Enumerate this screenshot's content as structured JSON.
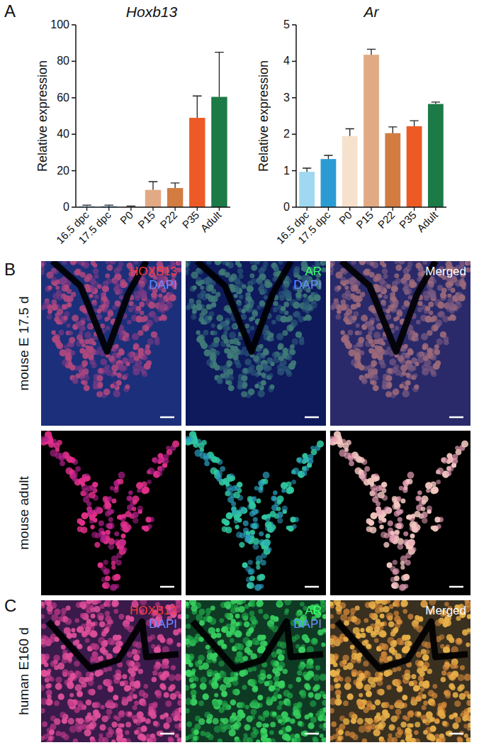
{
  "chart_data": [
    {
      "type": "bar",
      "title": "Hoxb13",
      "y_label": "Relative expression",
      "categories": [
        "16.5 dpc",
        "17.5 dpc",
        "P0",
        "P15",
        "P22",
        "P35",
        "Adult"
      ],
      "values": [
        0.6,
        0.5,
        0.3,
        9.5,
        10.5,
        49,
        60.5
      ],
      "errors": [
        0.5,
        0.6,
        0.3,
        4.5,
        2.8,
        12,
        24.5
      ],
      "colors": [
        "#9fd8f0",
        "#2b9cd3",
        "#f6e2cc",
        "#e2aa84",
        "#d27c42",
        "#ee5a25",
        "#1c7a47"
      ],
      "ylim": [
        0,
        100
      ],
      "yticks": [
        0,
        20,
        40,
        60,
        80,
        100
      ]
    },
    {
      "type": "bar",
      "title": "Ar",
      "y_label": "Relative expression",
      "categories": [
        "16.5 dpc",
        "17.5 dpc",
        "P0",
        "P15",
        "P22",
        "P35",
        "Adult"
      ],
      "values": [
        0.97,
        1.32,
        1.95,
        4.18,
        2.03,
        2.22,
        2.83
      ],
      "errors": [
        0.1,
        0.1,
        0.2,
        0.15,
        0.17,
        0.15,
        0.05
      ],
      "colors": [
        "#9fd8f0",
        "#2b9cd3",
        "#f6e2cc",
        "#e2aa84",
        "#d27c42",
        "#ee5a25",
        "#1c7a47"
      ],
      "ylim": [
        0,
        5
      ],
      "yticks": [
        0,
        1,
        2,
        3,
        4,
        5
      ]
    }
  ],
  "figure": {
    "panels": [
      {
        "label": "A"
      },
      {
        "label": "B",
        "rows": [
          {
            "label": "mouse E 17.5 d",
            "channel_labels": [
              [
                "HOXB13",
                "DAPI"
              ],
              [
                "AR",
                "DAPI"
              ],
              [
                "Merged"
              ]
            ]
          },
          {
            "label": "mouse adult",
            "channel_labels": [
              [],
              [],
              []
            ]
          }
        ]
      },
      {
        "label": "C",
        "rows": [
          {
            "label": "human E160 d",
            "channel_labels": [
              [
                "HOXB13",
                "DAPI"
              ],
              [
                "AR",
                "DAPI"
              ],
              [
                "Merged"
              ]
            ]
          }
        ]
      }
    ]
  }
}
